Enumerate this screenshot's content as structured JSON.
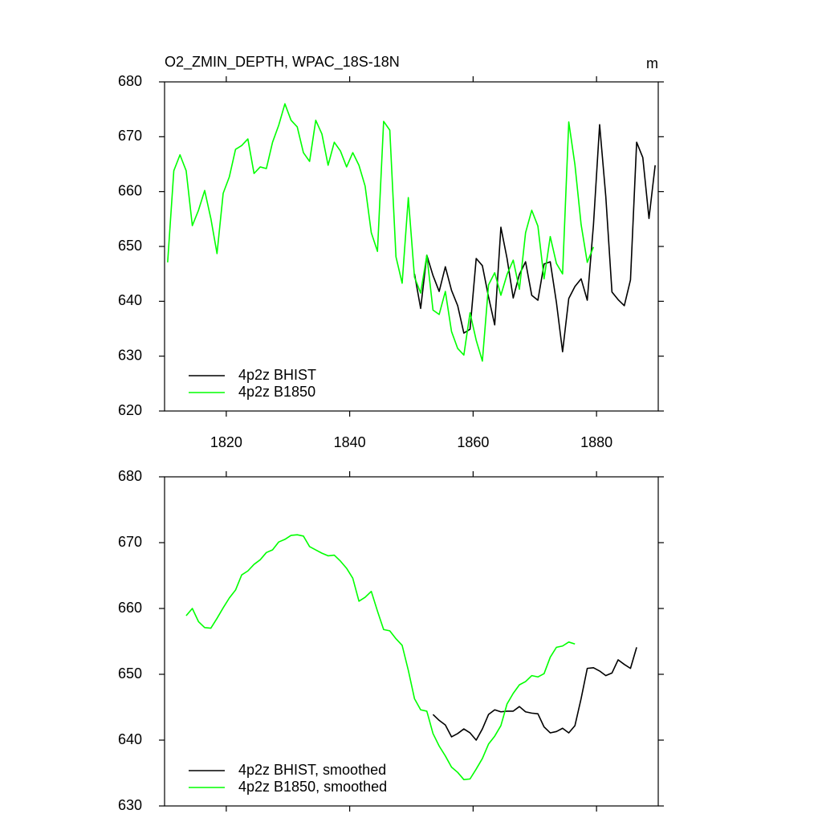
{
  "chart_data": [
    {
      "type": "line",
      "title": "O2_ZMIN_DEPTH, WPAC_18S-18N",
      "units": "m",
      "xlim": [
        1810,
        1890
      ],
      "xticks": [
        1820,
        1840,
        1860,
        1880
      ],
      "ylim": [
        620,
        680
      ],
      "yticks": [
        620,
        630,
        640,
        650,
        660,
        670,
        680
      ],
      "legend": "lower left",
      "series": [
        {
          "name": "4p2z BHIST",
          "color": "#000000",
          "x": [
            1850.5,
            1851.5,
            1852.5,
            1853.5,
            1854.5,
            1855.5,
            1856.5,
            1857.5,
            1858.5,
            1859.5,
            1860.5,
            1861.5,
            1862.5,
            1863.5,
            1864.5,
            1865.5,
            1866.5,
            1867.5,
            1868.5,
            1869.5,
            1870.5,
            1871.5,
            1872.5,
            1873.5,
            1874.5,
            1875.5,
            1876.5,
            1877.5,
            1878.5,
            1879.5,
            1880.5,
            1881.5,
            1882.5,
            1883.5,
            1884.5,
            1885.5,
            1886.5,
            1887.5,
            1888.5,
            1889.5
          ],
          "values": [
            645.0,
            638.7,
            648.4,
            644.7,
            641.8,
            646.3,
            642.0,
            639.2,
            634.2,
            634.9,
            647.8,
            646.5,
            640.8,
            635.7,
            653.5,
            647.8,
            640.6,
            644.9,
            647.2,
            641.1,
            640.2,
            646.8,
            647.2,
            639.8,
            630.8,
            640.5,
            642.7,
            644.1,
            640.2,
            653.9,
            672.2,
            659.1,
            641.7,
            640.3,
            639.2,
            643.9,
            669.0,
            666.2,
            655.1,
            664.8
          ]
        },
        {
          "name": "4p2z B1850",
          "color": "#00ff00",
          "x": [
            1810.5,
            1811.5,
            1812.5,
            1813.5,
            1814.5,
            1815.5,
            1816.5,
            1817.5,
            1818.5,
            1819.5,
            1820.5,
            1821.5,
            1822.5,
            1823.5,
            1824.5,
            1825.5,
            1826.5,
            1827.5,
            1828.5,
            1829.5,
            1830.5,
            1831.5,
            1832.5,
            1833.5,
            1834.5,
            1835.5,
            1836.5,
            1837.5,
            1838.5,
            1839.5,
            1840.5,
            1841.5,
            1842.5,
            1843.5,
            1844.5,
            1845.5,
            1846.5,
            1847.5,
            1848.5,
            1849.5,
            1850.5,
            1851.5,
            1852.5,
            1853.5,
            1854.5,
            1855.5,
            1856.5,
            1857.5,
            1858.5,
            1859.5,
            1860.5,
            1861.5,
            1862.5,
            1863.5,
            1864.5,
            1865.5,
            1866.5,
            1867.5,
            1868.5,
            1869.5,
            1870.5,
            1871.5,
            1872.5,
            1873.5,
            1874.5,
            1875.5,
            1876.5,
            1877.5,
            1878.5,
            1879.5
          ],
          "values": [
            647.1,
            663.8,
            666.7,
            663.8,
            653.8,
            656.6,
            660.2,
            655.1,
            648.7,
            659.7,
            662.7,
            667.7,
            668.4,
            669.6,
            663.3,
            664.5,
            664.2,
            669.0,
            672.1,
            676.0,
            673.0,
            671.8,
            667.1,
            665.5,
            673.0,
            670.5,
            664.8,
            669.0,
            667.4,
            664.5,
            667.1,
            664.8,
            661.0,
            652.5,
            649.1,
            672.8,
            671.2,
            648.1,
            643.3,
            658.9,
            644.4,
            641.5,
            648.4,
            638.4,
            637.6,
            641.8,
            634.5,
            631.4,
            630.2,
            637.9,
            632.9,
            629.1,
            643.0,
            645.2,
            641.1,
            644.9,
            647.5,
            642.2,
            652.5,
            656.6,
            653.7,
            644.1,
            651.8,
            646.9,
            645.0,
            672.7,
            664.9,
            654.0,
            647.1,
            649.9
          ]
        }
      ]
    },
    {
      "type": "line",
      "xlim": [
        1810,
        1890
      ],
      "ylim": [
        630,
        680
      ],
      "yticks": [
        630,
        640,
        650,
        660,
        670,
        680
      ],
      "legend": "lower left",
      "series": [
        {
          "name": "4p2z BHIST, smoothed",
          "color": "#000000",
          "x": [
            1853.5,
            1854.5,
            1855.5,
            1856.5,
            1857.5,
            1858.5,
            1859.5,
            1860.5,
            1861.5,
            1862.5,
            1863.5,
            1864.5,
            1865.5,
            1866.5,
            1867.5,
            1868.5,
            1869.5,
            1870.5,
            1871.5,
            1872.5,
            1873.5,
            1874.5,
            1875.5,
            1876.5,
            1877.5,
            1878.5,
            1879.5,
            1880.5,
            1881.5,
            1882.5,
            1883.5,
            1884.5,
            1885.5,
            1886.5
          ],
          "values": [
            643.9,
            643.0,
            642.3,
            640.5,
            641.0,
            641.7,
            641.1,
            640.0,
            641.7,
            643.9,
            644.6,
            644.3,
            644.4,
            644.4,
            645.1,
            644.3,
            644.1,
            644.0,
            642.0,
            641.1,
            641.3,
            641.8,
            641.1,
            642.2,
            646.3,
            650.9,
            651.0,
            650.5,
            649.8,
            650.2,
            652.2,
            651.5,
            650.9,
            654.1
          ]
        },
        {
          "name": "4p2z B1850, smoothed",
          "color": "#00ff00",
          "x": [
            1813.5,
            1814.5,
            1815.5,
            1816.5,
            1817.5,
            1818.5,
            1819.5,
            1820.5,
            1821.5,
            1822.5,
            1823.5,
            1824.5,
            1825.5,
            1826.5,
            1827.5,
            1828.5,
            1829.5,
            1830.5,
            1831.5,
            1832.5,
            1833.5,
            1834.5,
            1835.5,
            1836.5,
            1837.5,
            1838.5,
            1839.5,
            1840.5,
            1841.5,
            1842.5,
            1843.5,
            1844.5,
            1845.5,
            1846.5,
            1847.5,
            1848.5,
            1849.5,
            1850.5,
            1851.5,
            1852.5,
            1853.5,
            1854.5,
            1855.5,
            1856.5,
            1857.5,
            1858.5,
            1859.5,
            1860.5,
            1861.5,
            1862.5,
            1863.5,
            1864.5,
            1865.5,
            1866.5,
            1867.5,
            1868.5,
            1869.5,
            1870.5,
            1871.5,
            1872.5,
            1873.5,
            1874.5,
            1875.5,
            1876.5
          ],
          "values": [
            658.9,
            660.0,
            658.0,
            657.1,
            657.0,
            658.5,
            660.1,
            661.6,
            662.8,
            665.1,
            665.7,
            666.7,
            667.4,
            668.5,
            668.9,
            670.1,
            670.5,
            671.1,
            671.2,
            671.0,
            669.4,
            668.9,
            668.4,
            668.0,
            668.1,
            667.2,
            666.1,
            664.6,
            661.1,
            661.7,
            662.6,
            659.6,
            656.8,
            656.6,
            655.4,
            654.4,
            650.6,
            646.3,
            644.6,
            644.4,
            641.0,
            639.1,
            637.6,
            635.9,
            635.1,
            634.0,
            634.1,
            635.6,
            637.2,
            639.4,
            640.6,
            642.2,
            645.5,
            647.1,
            648.4,
            648.9,
            649.8,
            649.6,
            650.1,
            652.6,
            654.1,
            654.3,
            654.9,
            654.6
          ]
        }
      ]
    }
  ]
}
